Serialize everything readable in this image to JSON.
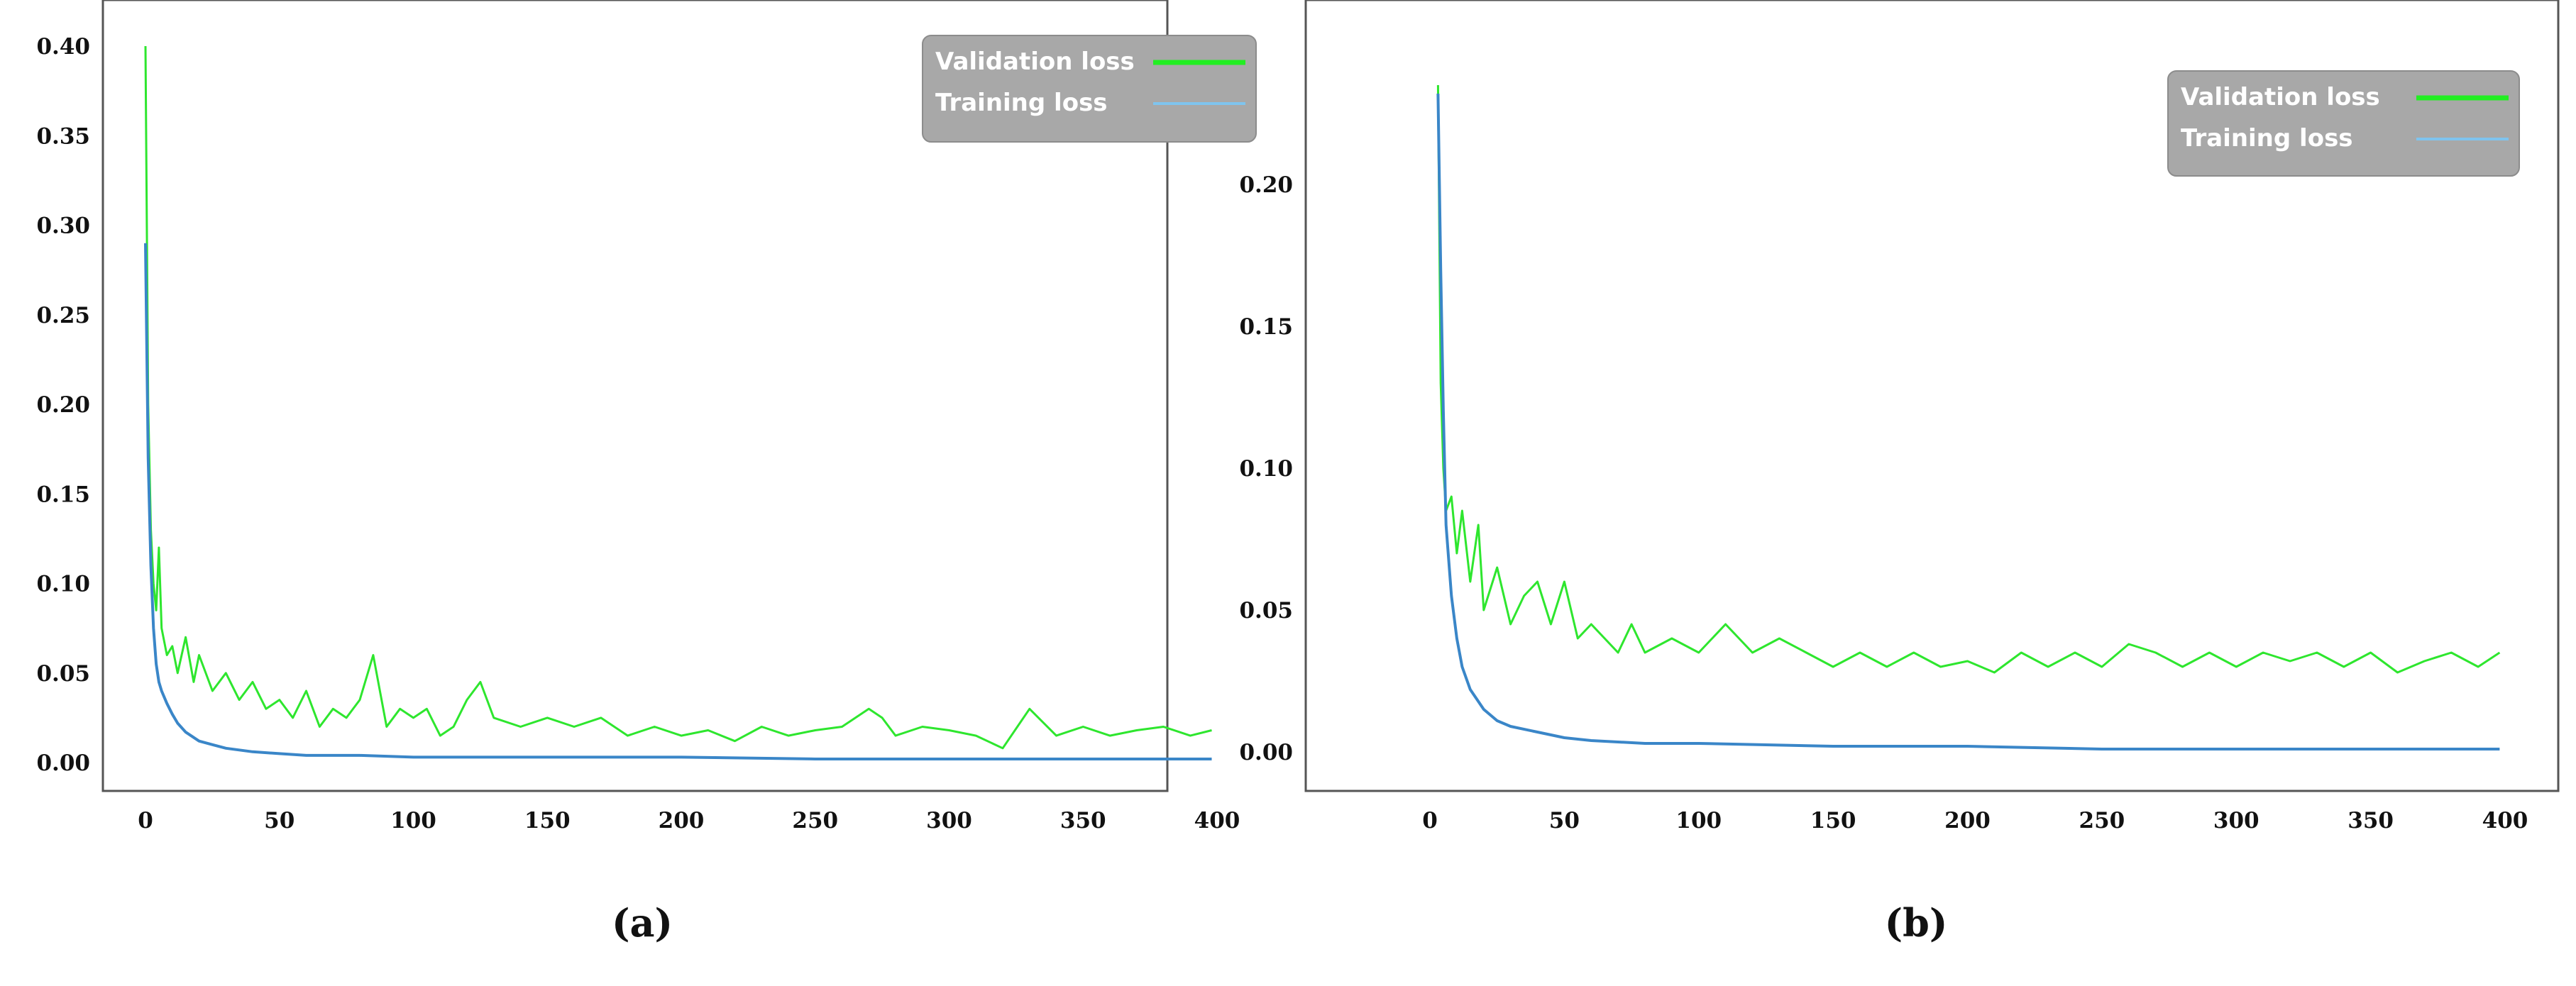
{
  "chart_data": [
    {
      "type": "line",
      "panel_label": "(a)",
      "xlim": [
        0,
        400
      ],
      "ylim": [
        0,
        0.4
      ],
      "xticks": [
        "0",
        "50",
        "100",
        "150",
        "200",
        "250",
        "300",
        "350",
        "400"
      ],
      "yticks": [
        "0.00",
        "0.05",
        "0.10",
        "0.15",
        "0.20",
        "0.25",
        "0.30",
        "0.35",
        "0.40"
      ],
      "legend_position": "top-right",
      "series": [
        {
          "name": "Validation loss",
          "color": "#2ee62e",
          "x": [
            0,
            1,
            2,
            3,
            4,
            5,
            6,
            8,
            10,
            12,
            15,
            18,
            20,
            25,
            30,
            35,
            40,
            45,
            50,
            55,
            60,
            65,
            70,
            75,
            80,
            85,
            90,
            95,
            100,
            105,
            110,
            115,
            120,
            125,
            130,
            140,
            150,
            160,
            170,
            180,
            190,
            200,
            210,
            220,
            230,
            240,
            250,
            260,
            270,
            275,
            280,
            290,
            300,
            310,
            320,
            330,
            340,
            350,
            360,
            370,
            380,
            390,
            398
          ],
          "y": [
            0.4,
            0.2,
            0.13,
            0.1,
            0.085,
            0.12,
            0.075,
            0.06,
            0.065,
            0.05,
            0.07,
            0.045,
            0.06,
            0.04,
            0.05,
            0.035,
            0.045,
            0.03,
            0.035,
            0.025,
            0.04,
            0.02,
            0.03,
            0.025,
            0.035,
            0.06,
            0.02,
            0.03,
            0.025,
            0.03,
            0.015,
            0.02,
            0.035,
            0.045,
            0.025,
            0.02,
            0.025,
            0.02,
            0.025,
            0.015,
            0.02,
            0.015,
            0.018,
            0.012,
            0.02,
            0.015,
            0.018,
            0.02,
            0.03,
            0.025,
            0.015,
            0.02,
            0.018,
            0.015,
            0.008,
            0.03,
            0.015,
            0.02,
            0.015,
            0.018,
            0.02,
            0.015,
            0.018
          ]
        },
        {
          "name": "Training loss",
          "color": "#3a86c8",
          "x": [
            0,
            1,
            2,
            3,
            4,
            5,
            6,
            8,
            10,
            12,
            15,
            20,
            25,
            30,
            40,
            50,
            60,
            80,
            100,
            150,
            200,
            250,
            300,
            350,
            398
          ],
          "y": [
            0.29,
            0.17,
            0.11,
            0.075,
            0.055,
            0.045,
            0.04,
            0.033,
            0.027,
            0.022,
            0.017,
            0.012,
            0.01,
            0.008,
            0.006,
            0.005,
            0.004,
            0.004,
            0.003,
            0.003,
            0.003,
            0.002,
            0.002,
            0.002,
            0.002
          ]
        }
      ]
    },
    {
      "type": "line",
      "panel_label": "(b)",
      "xlim": [
        0,
        400
      ],
      "ylim": [
        0,
        0.24
      ],
      "xticks": [
        "0",
        "50",
        "100",
        "150",
        "200",
        "250",
        "300",
        "350",
        "400"
      ],
      "yticks": [
        "0.00",
        "0.05",
        "0.10",
        "0.15",
        "0.20"
      ],
      "legend_position": "top-right",
      "series": [
        {
          "name": "Validation loss",
          "color": "#2ee62e",
          "x": [
            3,
            4,
            5,
            6,
            8,
            10,
            12,
            15,
            18,
            20,
            25,
            30,
            35,
            40,
            45,
            50,
            55,
            60,
            65,
            70,
            75,
            80,
            90,
            100,
            110,
            115,
            120,
            130,
            140,
            150,
            160,
            170,
            180,
            190,
            200,
            210,
            220,
            230,
            240,
            250,
            260,
            270,
            280,
            290,
            300,
            310,
            320,
            330,
            340,
            350,
            360,
            370,
            380,
            390,
            398
          ],
          "y": [
            0.235,
            0.13,
            0.1,
            0.085,
            0.09,
            0.07,
            0.085,
            0.06,
            0.08,
            0.05,
            0.065,
            0.045,
            0.055,
            0.06,
            0.045,
            0.06,
            0.04,
            0.045,
            0.04,
            0.035,
            0.045,
            0.035,
            0.04,
            0.035,
            0.045,
            0.04,
            0.035,
            0.04,
            0.035,
            0.03,
            0.035,
            0.03,
            0.035,
            0.03,
            0.032,
            0.028,
            0.035,
            0.03,
            0.035,
            0.03,
            0.038,
            0.035,
            0.03,
            0.035,
            0.03,
            0.035,
            0.032,
            0.035,
            0.03,
            0.035,
            0.028,
            0.032,
            0.035,
            0.03,
            0.035
          ]
        },
        {
          "name": "Training loss",
          "color": "#3a86c8",
          "x": [
            3,
            4,
            5,
            6,
            8,
            10,
            12,
            15,
            20,
            25,
            30,
            40,
            50,
            60,
            80,
            100,
            150,
            200,
            250,
            300,
            350,
            398
          ],
          "y": [
            0.232,
            0.17,
            0.12,
            0.08,
            0.055,
            0.04,
            0.03,
            0.022,
            0.015,
            0.011,
            0.009,
            0.007,
            0.005,
            0.004,
            0.003,
            0.003,
            0.002,
            0.002,
            0.001,
            0.001,
            0.001,
            0.001
          ]
        }
      ]
    }
  ]
}
